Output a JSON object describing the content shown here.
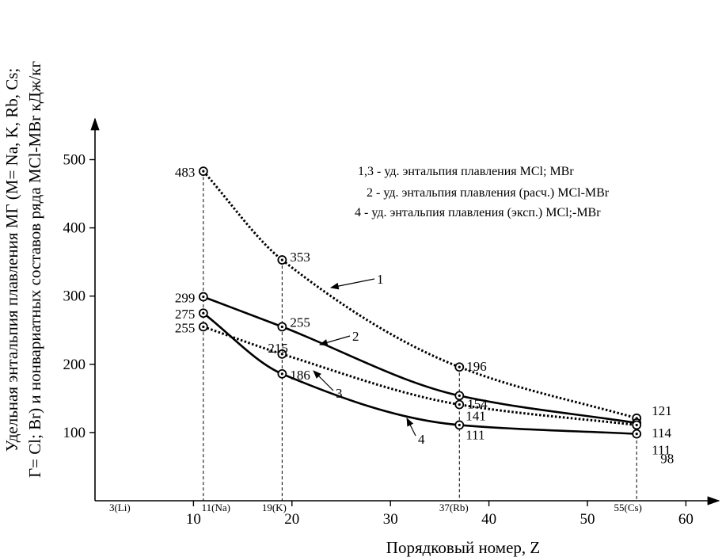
{
  "chart_data": {
    "type": "line",
    "title": "",
    "xlabel": "Порядковый номер, Z",
    "ylabel_lines": [
      "Удельная энтальпия плавления МГ (М= Na, K, Rb, Cs;",
      "Г= Cl; Br) и нонвариатных составов ряда MCl-MBr кДж/кг"
    ],
    "xlim": [
      0,
      62
    ],
    "ylim": [
      0,
      560
    ],
    "x_ticks": [
      10,
      20,
      30,
      40,
      50,
      60
    ],
    "y_ticks": [
      100,
      200,
      300,
      400,
      500
    ],
    "element_markers": [
      {
        "x": 3,
        "label": "3(Li)"
      },
      {
        "x": 11,
        "label": "11(Na)"
      },
      {
        "x": 19,
        "label": "19(K)"
      },
      {
        "x": 37,
        "label": "37(Rb)"
      },
      {
        "x": 55,
        "label": "55(Cs)"
      }
    ],
    "series": [
      {
        "name": "1",
        "style": "dotted",
        "points": [
          [
            11,
            483
          ],
          [
            19,
            353
          ],
          [
            37,
            196
          ],
          [
            55,
            121
          ]
        ]
      },
      {
        "name": "2",
        "style": "solid",
        "points": [
          [
            11,
            299
          ],
          [
            19,
            255
          ],
          [
            37,
            154
          ],
          [
            55,
            114
          ]
        ]
      },
      {
        "name": "3",
        "style": "dotted",
        "points": [
          [
            11,
            255
          ],
          [
            19,
            215
          ],
          [
            37,
            141
          ],
          [
            55,
            111
          ]
        ]
      },
      {
        "name": "4",
        "style": "solid",
        "points": [
          [
            11,
            275
          ],
          [
            19,
            186
          ],
          [
            37,
            111
          ],
          [
            55,
            98
          ]
        ]
      }
    ],
    "value_labels": [
      "483",
      "353",
      "196",
      "121",
      "299",
      "255",
      "154",
      "114",
      "255",
      "215",
      "141",
      "111",
      "275",
      "186",
      "111",
      "98"
    ],
    "curve_labels": [
      "1",
      "2",
      "3",
      "4"
    ],
    "legend": [
      "1,3 - уд. энтальпия плавления MCl; MBr",
      "2 - уд. энтальпия плавления (расч.) MCl-MBr",
      "4 - уд. энтальпия плавления (эксп.) MCl;-MBr"
    ],
    "legend_position": "top-right",
    "grid": false
  }
}
